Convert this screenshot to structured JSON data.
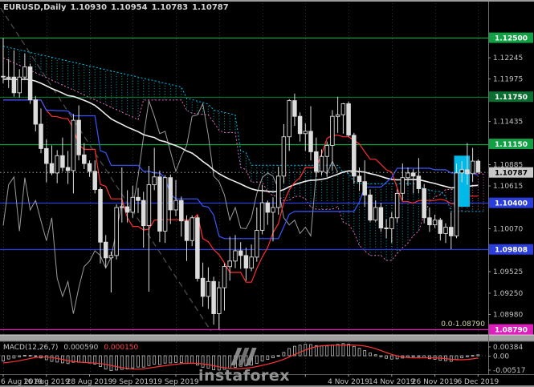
{
  "chart_title": {
    "symbol": "EURUSD,Daily",
    "open": "1.10930",
    "high": "1.10954",
    "low": "1.10783",
    "close": "1.10787"
  },
  "watermark": {
    "text": "instaforex"
  },
  "colors": {
    "background": "#000000",
    "grid": "#2e2e2e",
    "candle_outline": "#dcdcdc",
    "candle_bull_fill": "#000000",
    "candle_bear_fill": "#dcdcdc",
    "axis_text": "#c2c2c2",
    "pane_separator": "#a0a0a0",
    "watermark_text": "#9a9a9a"
  },
  "chart_data": {
    "type": "candlestick",
    "symbol": "EURUSD",
    "timeframe": "Daily",
    "x_unit": "consecutive trading days, 6 Aug 2019 to 6 Dec 2019",
    "ylim": [
      1.0873,
      1.1298
    ],
    "price_axis_ticks": [
      {
        "label": "1.12245",
        "value": 1.12245
      },
      {
        "label": "1.11975",
        "value": 1.11975
      },
      {
        "label": "1.11435",
        "value": 1.11435
      },
      {
        "label": "1.10885",
        "value": 1.10885
      },
      {
        "label": "1.10615",
        "value": 1.10615
      },
      {
        "label": "1.10070",
        "value": 1.1007
      },
      {
        "label": "1.09525",
        "value": 1.09525
      },
      {
        "label": "1.09250",
        "value": 1.0925
      },
      {
        "label": "1.08980",
        "value": 1.0898
      }
    ],
    "time_axis_labels": [
      {
        "label": "6 Aug 2019",
        "index": 0
      },
      {
        "label": "16 Aug 2019",
        "index": 8
      },
      {
        "label": "28 Aug 2019",
        "index": 16
      },
      {
        "label": "9 Sep 2019",
        "index": 24
      },
      {
        "label": "19 Sep 2019",
        "index": 32
      },
      {
        "label": "4 Nov 2019",
        "index": 64
      },
      {
        "label": "14 Nov 2019",
        "index": 72
      },
      {
        "label": "26 Nov 2019",
        "index": 80
      },
      {
        "label": "6 Dec 2019",
        "index": 88
      }
    ],
    "ohlc": [
      [
        1.1201,
        1.12495,
        1.1192,
        1.12
      ],
      [
        1.12,
        1.1223,
        1.1186,
        1.12
      ],
      [
        1.12,
        1.1234,
        1.1175,
        1.118
      ],
      [
        1.118,
        1.121,
        1.1174,
        1.12
      ],
      [
        1.12,
        1.123,
        1.1196,
        1.1213
      ],
      [
        1.1213,
        1.1217,
        1.1166,
        1.1171
      ],
      [
        1.1171,
        1.1176,
        1.1131,
        1.114
      ],
      [
        1.114,
        1.116,
        1.1103,
        1.1109
      ],
      [
        1.1109,
        1.1121,
        1.1066,
        1.109
      ],
      [
        1.109,
        1.1113,
        1.1075,
        1.1078
      ],
      [
        1.1078,
        1.1107,
        1.1065,
        1.11
      ],
      [
        1.11,
        1.1123,
        1.108,
        1.1085
      ],
      [
        1.1085,
        1.1106,
        1.1064,
        1.1081
      ],
      [
        1.1081,
        1.1153,
        1.1052,
        1.1145
      ],
      [
        1.1145,
        1.1164,
        1.1094,
        1.1101
      ],
      [
        1.1101,
        1.1116,
        1.1083,
        1.109
      ],
      [
        1.109,
        1.1094,
        1.1073,
        1.108
      ],
      [
        1.108,
        1.1094,
        1.1052,
        1.1057
      ],
      [
        1.1057,
        1.106,
        1.0963,
        1.099
      ],
      [
        1.099,
        1.0999,
        1.0958,
        1.097
      ],
      [
        1.097,
        1.0978,
        1.0926,
        1.0973
      ],
      [
        1.0973,
        1.1038,
        1.0968,
        1.1034
      ],
      [
        1.1034,
        1.1085,
        1.1015,
        1.1035
      ],
      [
        1.1035,
        1.1056,
        1.1015,
        1.1028
      ],
      [
        1.1028,
        1.1062,
        1.1021,
        1.1047
      ],
      [
        1.1047,
        1.1059,
        1.1027,
        1.1043
      ],
      [
        1.1043,
        1.1054,
        1.0983,
        1.1011
      ],
      [
        1.1011,
        1.1087,
        1.0927,
        1.1063
      ],
      [
        1.1063,
        1.111,
        1.1056,
        1.1073
      ],
      [
        1.1073,
        1.1081,
        1.099,
        1.1004
      ],
      [
        1.1004,
        1.1075,
        1.0989,
        1.1072
      ],
      [
        1.1072,
        1.1076,
        1.1013,
        1.1031
      ],
      [
        1.1031,
        1.1069,
        1.1023,
        1.1043
      ],
      [
        1.1043,
        1.1048,
        1.0997,
        1.1017
      ],
      [
        1.1017,
        1.1024,
        1.0966,
        1.0992
      ],
      [
        1.0992,
        1.1024,
        1.0985,
        1.1021
      ],
      [
        1.1021,
        1.1024,
        1.094,
        1.0944
      ],
      [
        1.0944,
        1.0964,
        1.0908,
        1.0921
      ],
      [
        1.0921,
        1.0958,
        1.0905,
        1.094
      ],
      [
        1.094,
        1.0946,
        1.0885,
        1.0899
      ],
      [
        1.0899,
        1.094,
        1.0879,
        1.0932
      ],
      [
        1.0932,
        1.0963,
        1.0903,
        1.0959
      ],
      [
        1.0959,
        1.0997,
        1.0941,
        1.0966
      ],
      [
        1.0966,
        1.0999,
        1.0957,
        1.0979
      ],
      [
        1.0979,
        1.099,
        1.0956,
        1.0973
      ],
      [
        1.0973,
        1.0983,
        1.0941,
        1.0957
      ],
      [
        1.0957,
        1.0987,
        1.0953,
        1.0971
      ],
      [
        1.0971,
        1.1034,
        1.0965,
        1.1005
      ],
      [
        1.1005,
        1.1063,
        1.1,
        1.104
      ],
      [
        1.104,
        1.1043,
        1.1012,
        1.1028
      ],
      [
        1.1028,
        1.1047,
        1.0991,
        1.1034
      ],
      [
        1.1034,
        1.1086,
        1.1025,
        1.1074
      ],
      [
        1.1074,
        1.114,
        1.1065,
        1.1124
      ],
      [
        1.1124,
        1.1172,
        1.1106,
        1.117
      ],
      [
        1.117,
        1.1179,
        1.1138,
        1.115
      ],
      [
        1.115,
        1.1155,
        1.1118,
        1.1128
      ],
      [
        1.1128,
        1.1141,
        1.1106,
        1.1131
      ],
      [
        1.1131,
        1.1163,
        1.1094,
        1.1105
      ],
      [
        1.1105,
        1.1123,
        1.1073,
        1.108
      ],
      [
        1.108,
        1.1108,
        1.1075,
        1.1099
      ],
      [
        1.1099,
        1.1118,
        1.1073,
        1.1113
      ],
      [
        1.1113,
        1.1158,
        1.1081,
        1.115
      ],
      [
        1.115,
        1.1175,
        1.1129,
        1.1152
      ],
      [
        1.1152,
        1.1167,
        1.1128,
        1.1166
      ],
      [
        1.1166,
        1.1169,
        1.1124,
        1.1126
      ],
      [
        1.1126,
        1.1129,
        1.1064,
        1.1074
      ],
      [
        1.1074,
        1.1085,
        1.1055,
        1.1067
      ],
      [
        1.1067,
        1.1094,
        1.1035,
        1.105
      ],
      [
        1.105,
        1.1057,
        1.1016,
        1.1018
      ],
      [
        1.1018,
        1.1043,
        1.1016,
        1.1034
      ],
      [
        1.1034,
        1.104,
        1.1003,
        1.1008
      ],
      [
        1.1008,
        1.1019,
        1.0995,
        1.1007
      ],
      [
        1.1007,
        1.1028,
        1.0989,
        1.1021
      ],
      [
        1.1021,
        1.1057,
        1.1015,
        1.1052
      ],
      [
        1.1052,
        1.109,
        1.1043,
        1.1072
      ],
      [
        1.1072,
        1.1085,
        1.1062,
        1.1078
      ],
      [
        1.1078,
        1.1083,
        1.1052,
        1.1074
      ],
      [
        1.1074,
        1.1097,
        1.1052,
        1.1058
      ],
      [
        1.1058,
        1.1064,
        1.1014,
        1.1021
      ],
      [
        1.1021,
        1.1034,
        1.1003,
        1.1012
      ],
      [
        1.1012,
        1.1025,
        1.1008,
        1.1018
      ],
      [
        1.1018,
        1.1021,
        1.0992,
        1.1001
      ],
      [
        1.1001,
        1.1014,
        1.0989,
        1.1009
      ],
      [
        1.1009,
        1.1028,
        1.0981,
        1.0998
      ],
      [
        1.0998,
        1.109,
        1.0995,
        1.1078
      ],
      [
        1.1078,
        1.1093,
        1.1066,
        1.1082
      ],
      [
        1.1082,
        1.1116,
        1.1063,
        1.1077
      ],
      [
        1.1077,
        1.111,
        1.1067,
        1.1093
      ],
      [
        1.1093,
        1.10954,
        1.10783,
        1.10787
      ]
    ],
    "levels": [
      {
        "label": "1.12500",
        "value": 1.125,
        "color": "#12a044",
        "text_color": "#ffffff"
      },
      {
        "label": "1.11750",
        "value": 1.1175,
        "color": "#0b6e31",
        "text_color": "#ffffff"
      },
      {
        "label": "1.11150",
        "value": 1.1115,
        "color": "#12a044",
        "text_color": "#ffffff"
      },
      {
        "label": "1.10400",
        "value": 1.104,
        "color": "#2b3ed9",
        "text_color": "#ffffff"
      },
      {
        "label": "1.09808",
        "value": 1.09808,
        "color": "#2b3ed9",
        "text_color": "#ffffff"
      },
      {
        "label": "1.08790",
        "value": 1.0879,
        "color": "#de1fbe",
        "text_color": "#ffffff"
      }
    ],
    "current_price": {
      "label": "1.10787",
      "value": 1.10787,
      "badge_color": "#c9c9c9",
      "text_color": "#000000"
    },
    "fib_label": {
      "text": "0.0-1.08790",
      "value": 1.0879,
      "color": "#d8d8ac"
    },
    "ichimoku": {
      "tenkan_period": 9,
      "kijun_period": 26,
      "senkou_b_period": 52,
      "shift": 26,
      "tenkan_color": "#ff2e2e",
      "kijun_color": "#3a57ff",
      "cloud_bear_color": "#00d4ff",
      "cloud_bull_color": "#ff6ec7",
      "chikou_color": "#9b9b9b"
    },
    "trend_ma": {
      "period": 62,
      "color": "#ededed"
    },
    "trendline": {
      "from_index": -0.5,
      "from_price": 1.1288,
      "to_index": 38.5,
      "to_price": 1.0877,
      "style": "dashed",
      "color": "#4b4b4b"
    },
    "highlight_box": {
      "from_index": 83.55,
      "to_index": 86.45,
      "price_top": 1.11,
      "price_bottom": 1.1035,
      "color": "#00b9e8"
    },
    "macd": {
      "label": "MACD(12,26,7)",
      "fast": 12,
      "slow": 26,
      "signal_period": 7,
      "values": [
        "0.000590",
        "0.000150"
      ],
      "ylim": [
        -0.00517,
        0.00384
      ],
      "axis_labels": {
        "top": "0.00384",
        "zero": "0.00",
        "bottom": "-0.00517"
      },
      "histogram_color": "#c0c0c0",
      "signal_color": "#ff3434"
    }
  }
}
